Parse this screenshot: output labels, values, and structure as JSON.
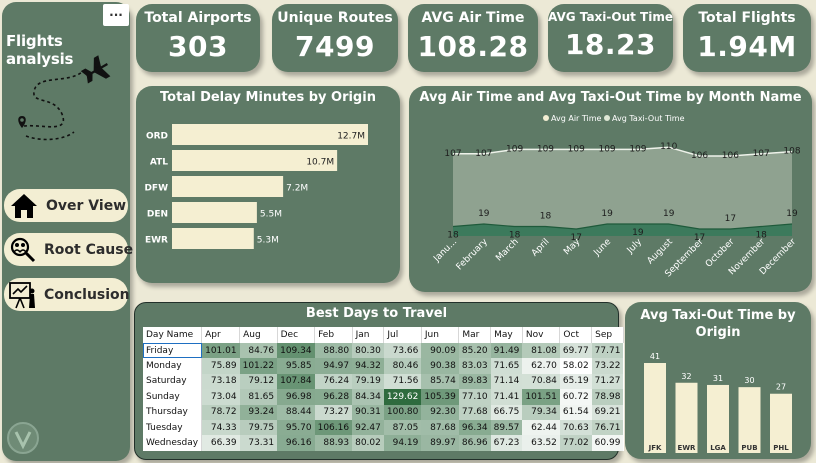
{
  "sidebar": {
    "more_label": "...",
    "title": "Flights analysis",
    "nav": [
      {
        "label": "Over View",
        "icon": "home-icon"
      },
      {
        "label": "Root Cause",
        "icon": "magnifier-people-icon"
      },
      {
        "label": "Conclusion",
        "icon": "presentation-icon"
      }
    ]
  },
  "kpis": {
    "airports": {
      "label": "Total Airports",
      "value": "303"
    },
    "routes": {
      "label": "Unique Routes",
      "value": "7499"
    },
    "air_time": {
      "label": "AVG Air Time",
      "value": "108.28"
    },
    "taxi_out": {
      "label": "AVG Taxi-Out Time",
      "value": "18.23"
    },
    "flights": {
      "label": "Total Flights",
      "value": "1.94M"
    }
  },
  "colors": {
    "panel": "#5e7a66",
    "background": "#ece9d6",
    "bar": "#f5efd2",
    "air_time_area": "#8fa290",
    "taxi_area": "#3c7a5c",
    "heat_low": "#ffffff",
    "heat_high": "#2e6b3e"
  },
  "chart_data": [
    {
      "type": "bar",
      "orientation": "horizontal",
      "title": "Total Delay Minutes by Origin",
      "categories": [
        "ORD",
        "ATL",
        "DFW",
        "DEN",
        "EWR"
      ],
      "values": [
        12.7,
        10.7,
        7.2,
        5.5,
        5.3
      ],
      "value_labels": [
        "12.7M",
        "10.7M",
        "7.2M",
        "5.5M",
        "5.3M"
      ],
      "unit": "M"
    },
    {
      "type": "area",
      "title": "Avg Air Time and Avg Taxi-Out Time by Month Name",
      "legend_position": "top-center",
      "categories": [
        "January",
        "February",
        "March",
        "April",
        "May",
        "June",
        "July",
        "August",
        "September",
        "October",
        "November",
        "December"
      ],
      "tick_labels": [
        "Janu...",
        "February",
        "March",
        "April",
        "May",
        "June",
        "July",
        "August",
        "September",
        "October",
        "November",
        "December"
      ],
      "series": [
        {
          "name": "Avg Air Time",
          "values": [
            107,
            107,
            109,
            109,
            109,
            109,
            109,
            110,
            106,
            106,
            107,
            108
          ]
        },
        {
          "name": "Avg Taxi-Out Time",
          "values": [
            18,
            19,
            18,
            18,
            17,
            19,
            19,
            19,
            17,
            17,
            18,
            19
          ]
        }
      ]
    },
    {
      "type": "table",
      "title": "Best Days to Travel",
      "corner_label": "Day Name",
      "columns": [
        "Apr",
        "Aug",
        "Dec",
        "Feb",
        "Jan",
        "Jul",
        "Jun",
        "Mar",
        "May",
        "Nov",
        "Oct",
        "Sep"
      ],
      "rows": [
        {
          "day": "Friday",
          "values": [
            101.01,
            84.76,
            109.34,
            88.8,
            80.3,
            73.66,
            90.09,
            85.2,
            91.49,
            81.08,
            69.77,
            77.71
          ]
        },
        {
          "day": "Monday",
          "values": [
            75.89,
            101.22,
            95.85,
            94.97,
            94.32,
            80.46,
            90.38,
            83.03,
            71.65,
            62.7,
            58.02,
            73.22
          ]
        },
        {
          "day": "Saturday",
          "values": [
            73.18,
            79.12,
            107.84,
            76.24,
            79.19,
            71.56,
            85.74,
            89.83,
            71.14,
            70.84,
            65.19,
            71.27
          ]
        },
        {
          "day": "Sunday",
          "values": [
            73.04,
            81.65,
            96.98,
            96.28,
            84.34,
            129.62,
            105.39,
            77.1,
            71.41,
            101.51,
            60.72,
            78.98
          ]
        },
        {
          "day": "Thursday",
          "values": [
            78.72,
            93.24,
            88.44,
            73.27,
            90.31,
            100.8,
            92.3,
            77.68,
            66.75,
            79.34,
            61.54,
            69.21
          ]
        },
        {
          "day": "Tuesday",
          "values": [
            74.33,
            79.75,
            95.7,
            106.16,
            92.47,
            87.05,
            87.68,
            96.34,
            89.57,
            62.44,
            70.63,
            76.71
          ]
        },
        {
          "day": "Wednesday",
          "values": [
            66.39,
            73.31,
            96.16,
            88.93,
            80.02,
            94.19,
            89.97,
            86.96,
            67.23,
            63.52,
            77.02,
            60.99
          ]
        }
      ],
      "selected_row": "Friday"
    },
    {
      "type": "bar",
      "orientation": "vertical",
      "title": "Avg Taxi-Out Time by Origin",
      "categories": [
        "JFK",
        "EWR",
        "LGA",
        "PUB",
        "PHL"
      ],
      "values": [
        41,
        32,
        31,
        30,
        27
      ]
    }
  ]
}
